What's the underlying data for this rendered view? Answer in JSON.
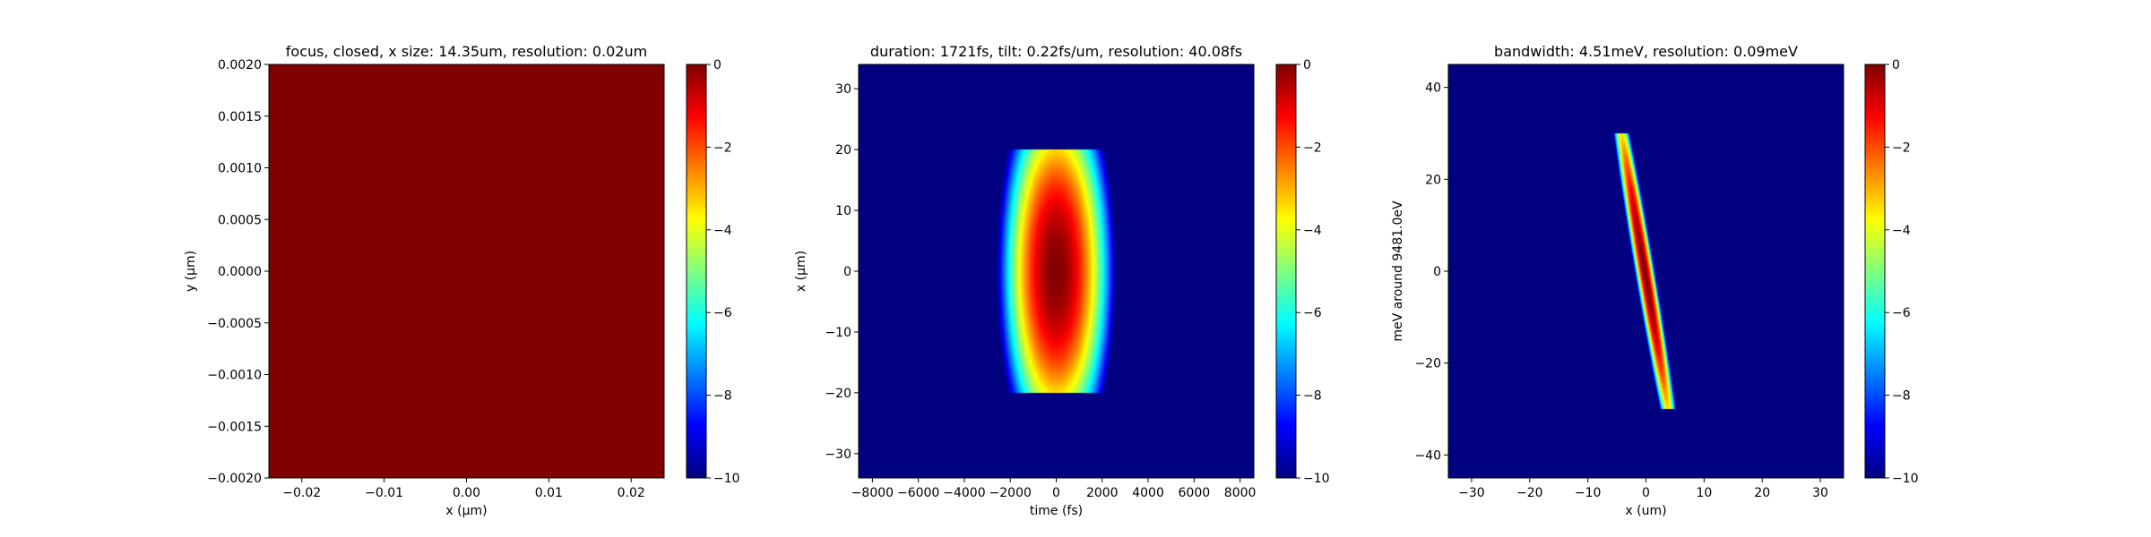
{
  "chart_data": [
    {
      "type": "heatmap",
      "title": "focus, closed, x size: 14.35um, resolution: 0.02um",
      "xlabel": "x (μm)",
      "ylabel": "y (μm)",
      "xlim": [
        -0.024,
        0.024
      ],
      "ylim": [
        -0.002,
        0.002
      ],
      "xticks": [
        -0.02,
        -0.01,
        0.0,
        0.01,
        0.02
      ],
      "xtick_labels": [
        "−0.02",
        "−0.01",
        "0.00",
        "0.01",
        "0.02"
      ],
      "yticks": [
        -0.002,
        -0.0015,
        -0.001,
        -0.0005,
        0.0,
        0.0005,
        0.001,
        0.0015,
        0.002
      ],
      "ytick_labels": [
        "−0.0020",
        "−0.0015",
        "−0.0010",
        "−0.0005",
        "0.0000",
        "0.0005",
        "0.0010",
        "0.0015",
        "0.0020"
      ],
      "colormap": "jet",
      "clim": [
        -10,
        0
      ],
      "colorbar_ticks": [
        0,
        -2,
        -4,
        -6,
        -8,
        -10
      ],
      "colorbar_tick_labels": [
        "0",
        "−2",
        "−4",
        "−6",
        "−8",
        "−10"
      ],
      "field": {
        "kind": "uniform",
        "value": 0
      }
    },
    {
      "type": "heatmap",
      "title": "duration: 1721fs, tilt: 0.22fs/um, resolution: 40.08fs",
      "xlabel": "time (fs)",
      "ylabel": "x (μm)",
      "xlim": [
        -8600,
        8600
      ],
      "ylim": [
        -34,
        34
      ],
      "xticks": [
        -8000,
        -6000,
        -4000,
        -2000,
        0,
        2000,
        4000,
        6000,
        8000
      ],
      "xtick_labels": [
        "−8000",
        "−6000",
        "−4000",
        "−2000",
        "0",
        "2000",
        "4000",
        "6000",
        "8000"
      ],
      "yticks": [
        -30,
        -20,
        -10,
        0,
        10,
        20,
        30
      ],
      "ytick_labels": [
        "−30",
        "−20",
        "−10",
        "0",
        "10",
        "20",
        "30"
      ],
      "colormap": "jet",
      "clim": [
        -10,
        0
      ],
      "colorbar_ticks": [
        0,
        -2,
        -4,
        -6,
        -8,
        -10
      ],
      "colorbar_tick_labels": [
        "0",
        "−2",
        "−4",
        "−6",
        "−8",
        "−10"
      ],
      "field": {
        "kind": "ellipse",
        "center_x": 0,
        "center_y": 0,
        "semi_x": 2600,
        "semi_y": 34,
        "y_cut": [
          -20,
          20
        ]
      }
    },
    {
      "type": "heatmap",
      "title": "bandwidth: 4.51meV, resolution: 0.09meV",
      "xlabel": "x (um)",
      "ylabel": "meV around 9481.0eV",
      "xlim": [
        -34,
        34
      ],
      "ylim": [
        -45,
        45
      ],
      "xticks": [
        -30,
        -20,
        -10,
        0,
        10,
        20,
        30
      ],
      "xtick_labels": [
        "−30",
        "−20",
        "−10",
        "0",
        "10",
        "20",
        "30"
      ],
      "yticks": [
        -40,
        -20,
        0,
        20,
        40
      ],
      "ytick_labels": [
        "−40",
        "−20",
        "0",
        "20",
        "40"
      ],
      "colormap": "jet",
      "clim": [
        -10,
        0
      ],
      "colorbar_ticks": [
        0,
        -2,
        -4,
        -6,
        -8,
        -10
      ],
      "colorbar_tick_labels": [
        "0",
        "−2",
        "−4",
        "−6",
        "−8",
        "−10"
      ],
      "field": {
        "kind": "tilted-line",
        "x_at_top": -4.2,
        "x_at_bottom": 3.8,
        "y_top": 30,
        "y_bottom": -30,
        "half_width": 1.8
      }
    }
  ]
}
